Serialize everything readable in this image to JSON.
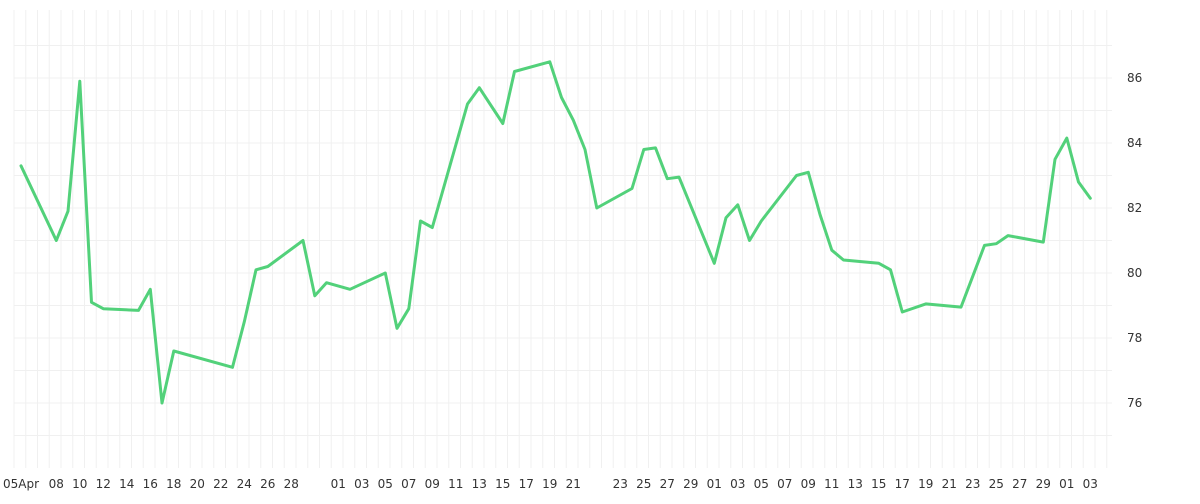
{
  "chart_data": {
    "type": "line",
    "x_tick_labels": [
      "05Apr",
      "08",
      "10",
      "12",
      "14",
      "16",
      "18",
      "20",
      "22",
      "24",
      "26",
      "28",
      "01",
      "03",
      "05",
      "07",
      "09",
      "11",
      "13",
      "15",
      "17",
      "19",
      "21",
      "23",
      "25",
      "27",
      "29",
      "01",
      "03",
      "05",
      "07",
      "09",
      "11",
      "13",
      "15",
      "17",
      "19",
      "21",
      "23",
      "25",
      "27",
      "29",
      "01",
      "03"
    ],
    "y_ticks": [
      76,
      78,
      80,
      82,
      84,
      86
    ],
    "ylim": [
      74,
      88
    ],
    "grid": true,
    "y_axis_position": "right",
    "line_color": "#52d17a",
    "series": [
      {
        "points": [
          [
            0,
            83.3
          ],
          [
            3,
            81.0
          ],
          [
            4,
            81.9
          ],
          [
            5,
            85.9
          ],
          [
            6,
            79.1
          ],
          [
            7,
            78.9
          ],
          [
            10,
            78.85
          ],
          [
            11,
            79.5
          ],
          [
            12,
            76.0
          ],
          [
            13,
            77.6
          ],
          [
            18,
            77.1
          ],
          [
            19,
            78.5
          ],
          [
            20,
            80.1
          ],
          [
            21,
            80.2
          ],
          [
            24,
            81.0
          ],
          [
            25,
            79.3
          ],
          [
            26,
            79.7
          ],
          [
            28,
            79.5
          ],
          [
            31,
            80.0
          ],
          [
            32,
            78.3
          ],
          [
            33,
            78.9
          ],
          [
            34,
            81.6
          ],
          [
            35,
            81.4
          ],
          [
            38,
            85.2
          ],
          [
            39,
            85.7
          ],
          [
            41,
            84.6
          ],
          [
            42,
            86.2
          ],
          [
            45,
            86.5
          ],
          [
            46,
            85.4
          ],
          [
            47,
            84.7
          ],
          [
            48,
            83.8
          ],
          [
            49,
            82.0
          ],
          [
            52,
            82.6
          ],
          [
            53,
            83.8
          ],
          [
            54,
            83.85
          ],
          [
            55,
            82.9
          ],
          [
            56,
            82.95
          ],
          [
            59,
            80.3
          ],
          [
            60,
            81.7
          ],
          [
            61,
            82.1
          ],
          [
            62,
            81.0
          ],
          [
            63,
            81.6
          ],
          [
            66,
            83.0
          ],
          [
            67,
            83.1
          ],
          [
            68,
            81.8
          ],
          [
            69,
            80.7
          ],
          [
            70,
            80.4
          ],
          [
            73,
            80.3
          ],
          [
            74,
            80.1
          ],
          [
            75,
            78.8
          ],
          [
            77,
            79.05
          ],
          [
            80,
            78.95
          ],
          [
            81,
            79.9
          ],
          [
            82,
            80.85
          ],
          [
            83,
            80.9
          ],
          [
            84,
            81.15
          ],
          [
            87,
            80.95
          ],
          [
            88,
            83.5
          ],
          [
            89,
            84.15
          ],
          [
            90,
            82.8
          ],
          [
            91,
            82.3
          ]
        ]
      }
    ]
  }
}
